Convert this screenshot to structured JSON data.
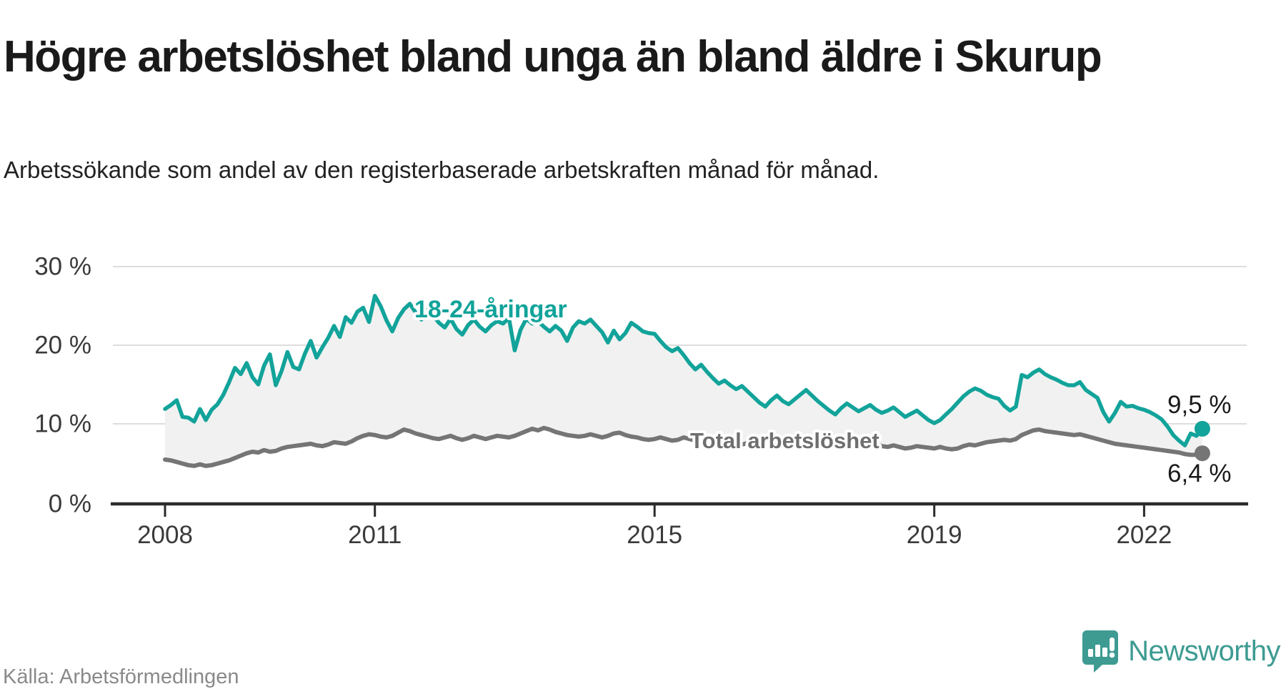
{
  "header": {
    "title": "Högre arbetslöshet bland unga än bland äldre i Skurup",
    "subtitle": "Arbetssökande som andel av den registerbaserade arbetskraften månad för månad."
  },
  "footer": {
    "source": "Källa: Arbetsförmedlingen",
    "brand": "Newsworthy",
    "brand_color": "#3d9b92"
  },
  "chart_data": {
    "type": "line",
    "title": "Högre arbetslöshet bland unga än bland äldre i Skurup",
    "x_unit": "month",
    "x_start": "2008-01",
    "x_end": "2022-11",
    "x_tick_labels": [
      "2008",
      "2011",
      "2015",
      "2019",
      "2022"
    ],
    "y_tick_labels": [
      "0 %",
      "10 %",
      "20 %",
      "30 %"
    ],
    "ylim": [
      0,
      30
    ],
    "grid": "horizontal",
    "gridline_color": "#dddddd",
    "axis_color": "#2b2b2b",
    "fill_between_color": "#f1f1f1",
    "series": [
      {
        "name": "18-24-åringar",
        "color": "#12a39a",
        "end_value": 9.5,
        "end_label": "9,5 %",
        "values": [
          12.0,
          12.5,
          13.1,
          11.0,
          10.9,
          10.4,
          12.0,
          10.6,
          11.9,
          12.6,
          13.8,
          15.4,
          17.2,
          16.4,
          17.8,
          16.0,
          15.1,
          17.5,
          18.9,
          15.0,
          16.8,
          19.2,
          17.3,
          17.0,
          19.0,
          20.6,
          18.5,
          19.8,
          21.0,
          22.5,
          21.1,
          23.6,
          22.9,
          24.3,
          24.8,
          23.0,
          26.3,
          25.0,
          23.2,
          21.8,
          23.5,
          24.6,
          25.3,
          24.2,
          23.3,
          24.5,
          23.8,
          22.9,
          22.3,
          23.4,
          22.1,
          21.4,
          22.6,
          23.3,
          22.4,
          21.8,
          22.6,
          23.1,
          22.8,
          23.5,
          19.4,
          22.0,
          23.4,
          22.8,
          23.1,
          22.4,
          21.8,
          22.5,
          21.9,
          20.6,
          22.3,
          23.1,
          22.8,
          23.3,
          22.5,
          21.7,
          20.4,
          21.9,
          20.8,
          21.6,
          22.9,
          22.4,
          21.8,
          21.6,
          21.5,
          20.6,
          19.8,
          19.3,
          19.7,
          18.8,
          17.8,
          17.0,
          17.6,
          16.7,
          15.9,
          15.2,
          15.6,
          15.0,
          14.5,
          14.9,
          14.2,
          13.5,
          12.8,
          12.3,
          13.1,
          13.7,
          13.0,
          12.6,
          13.2,
          13.8,
          14.4,
          13.7,
          13.0,
          12.4,
          11.8,
          11.3,
          12.1,
          12.7,
          12.2,
          11.7,
          12.1,
          12.5,
          11.9,
          11.5,
          11.8,
          12.2,
          11.6,
          11.0,
          11.4,
          11.8,
          11.2,
          10.6,
          10.2,
          10.6,
          11.3,
          12.0,
          12.8,
          13.6,
          14.2,
          14.6,
          14.3,
          13.8,
          13.5,
          13.3,
          12.4,
          11.8,
          12.3,
          16.3,
          16.0,
          16.6,
          17.0,
          16.4,
          16.0,
          15.7,
          15.3,
          15.0,
          15.0,
          15.4,
          14.4,
          13.9,
          13.4,
          11.6,
          10.4,
          11.5,
          12.9,
          12.3,
          12.4,
          12.1,
          11.9,
          11.6,
          11.2,
          10.7,
          9.8,
          8.7,
          8.0,
          7.4,
          8.9,
          8.6,
          9.5
        ]
      },
      {
        "name": "Total arbetslöshet",
        "color": "#757575",
        "end_value": 6.4,
        "end_label": "6,4 %",
        "values": [
          5.6,
          5.5,
          5.3,
          5.1,
          4.9,
          4.8,
          5.0,
          4.8,
          4.9,
          5.1,
          5.3,
          5.5,
          5.8,
          6.1,
          6.4,
          6.6,
          6.5,
          6.8,
          6.6,
          6.7,
          7.0,
          7.2,
          7.3,
          7.4,
          7.5,
          7.6,
          7.4,
          7.3,
          7.5,
          7.8,
          7.7,
          7.6,
          7.9,
          8.3,
          8.6,
          8.8,
          8.7,
          8.5,
          8.4,
          8.6,
          9.0,
          9.4,
          9.2,
          8.9,
          8.7,
          8.5,
          8.3,
          8.2,
          8.4,
          8.6,
          8.3,
          8.1,
          8.3,
          8.6,
          8.4,
          8.2,
          8.4,
          8.6,
          8.5,
          8.4,
          8.6,
          8.9,
          9.2,
          9.5,
          9.3,
          9.6,
          9.4,
          9.1,
          8.9,
          8.7,
          8.6,
          8.5,
          8.6,
          8.8,
          8.6,
          8.4,
          8.6,
          8.9,
          9.0,
          8.7,
          8.5,
          8.4,
          8.2,
          8.1,
          8.2,
          8.4,
          8.2,
          8.0,
          8.1,
          8.4,
          8.2,
          8.0,
          7.9,
          7.8,
          7.7,
          7.6,
          7.7,
          7.9,
          7.7,
          7.5,
          7.7,
          8.0,
          7.8,
          7.6,
          7.7,
          7.9,
          7.8,
          7.7,
          7.8,
          8.0,
          7.8,
          7.6,
          7.5,
          7.7,
          7.5,
          7.3,
          7.4,
          7.6,
          7.5,
          7.4,
          7.5,
          7.7,
          7.5,
          7.3,
          7.2,
          7.4,
          7.2,
          7.0,
          7.1,
          7.3,
          7.2,
          7.1,
          7.0,
          7.2,
          7.0,
          6.9,
          7.0,
          7.3,
          7.5,
          7.4,
          7.6,
          7.8,
          7.9,
          8.0,
          8.1,
          8.0,
          8.2,
          8.7,
          9.0,
          9.3,
          9.4,
          9.2,
          9.1,
          9.0,
          8.9,
          8.8,
          8.7,
          8.8,
          8.6,
          8.4,
          8.2,
          8.0,
          7.8,
          7.6,
          7.5,
          7.4,
          7.3,
          7.2,
          7.1,
          7.0,
          6.9,
          6.8,
          6.7,
          6.6,
          6.5,
          6.3,
          6.2,
          6.2,
          6.4
        ]
      }
    ],
    "legend_position": "inline-labels"
  }
}
